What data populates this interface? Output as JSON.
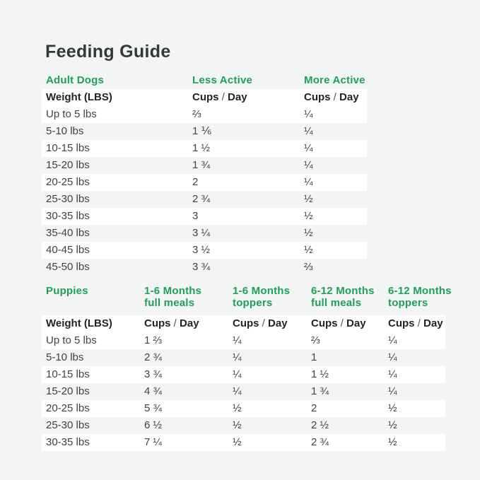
{
  "page": {
    "title": "Feeding Guide",
    "background_color": "#f3f4f4",
    "accent_green": "#1ea157",
    "stripe_color": "#ffffff"
  },
  "labels": {
    "weight_header": "Weight (LBS)",
    "cups": "Cups",
    "slash": "/",
    "day": "Day"
  },
  "adult_table": {
    "section_label": "Adult Dogs",
    "columns": [
      {
        "label": "Less Active"
      },
      {
        "label": "More Active"
      }
    ],
    "rows": [
      {
        "weight": "Up to 5 lbs",
        "less_active": "⅔",
        "more_active": "¼"
      },
      {
        "weight": "5-10 lbs",
        "less_active": "1 ⅙",
        "more_active": "¼"
      },
      {
        "weight": "10-15 lbs",
        "less_active": "1 ½",
        "more_active": "¼"
      },
      {
        "weight": "15-20 lbs",
        "less_active": "1 ¾",
        "more_active": "¼"
      },
      {
        "weight": "20-25 lbs",
        "less_active": "2",
        "more_active": "¼"
      },
      {
        "weight": "25-30 lbs",
        "less_active": "2 ¾",
        "more_active": "½"
      },
      {
        "weight": "30-35 lbs",
        "less_active": "3",
        "more_active": "½"
      },
      {
        "weight": "35-40 lbs",
        "less_active": "3 ¼",
        "more_active": "½"
      },
      {
        "weight": "40-45 lbs",
        "less_active": "3 ½",
        "more_active": "½"
      },
      {
        "weight": "45-50 lbs",
        "less_active": "3 ¾",
        "more_active": "⅔"
      }
    ]
  },
  "puppies_table": {
    "section_label": "Puppies",
    "columns": [
      {
        "line1": "1-6 Months",
        "line2": "full meals"
      },
      {
        "line1": "1-6 Months",
        "line2": "toppers"
      },
      {
        "line1": "6-12 Months",
        "line2": "full meals"
      },
      {
        "line1": "6-12 Months",
        "line2": "toppers"
      }
    ],
    "rows": [
      {
        "weight": "Up to 5 lbs",
        "values": [
          "1 ⅔",
          "¼",
          "⅔",
          "¼"
        ]
      },
      {
        "weight": "5-10 lbs",
        "values": [
          "2 ¾",
          "¼",
          "1",
          "¼"
        ]
      },
      {
        "weight": "10-15 lbs",
        "values": [
          "3 ¾",
          "¼",
          "1 ½",
          "¼"
        ]
      },
      {
        "weight": "15-20 lbs",
        "values": [
          "4 ¾",
          "¼",
          "1 ¾",
          "¼"
        ]
      },
      {
        "weight": "20-25 lbs",
        "values": [
          "5 ¾",
          "½",
          "2",
          "½"
        ]
      },
      {
        "weight": "25-30 lbs",
        "values": [
          "6 ½",
          "½",
          "2 ½",
          "½"
        ]
      },
      {
        "weight": "30-35 lbs",
        "values": [
          "7 ¼",
          "½",
          "2 ¾",
          "½"
        ]
      }
    ]
  }
}
